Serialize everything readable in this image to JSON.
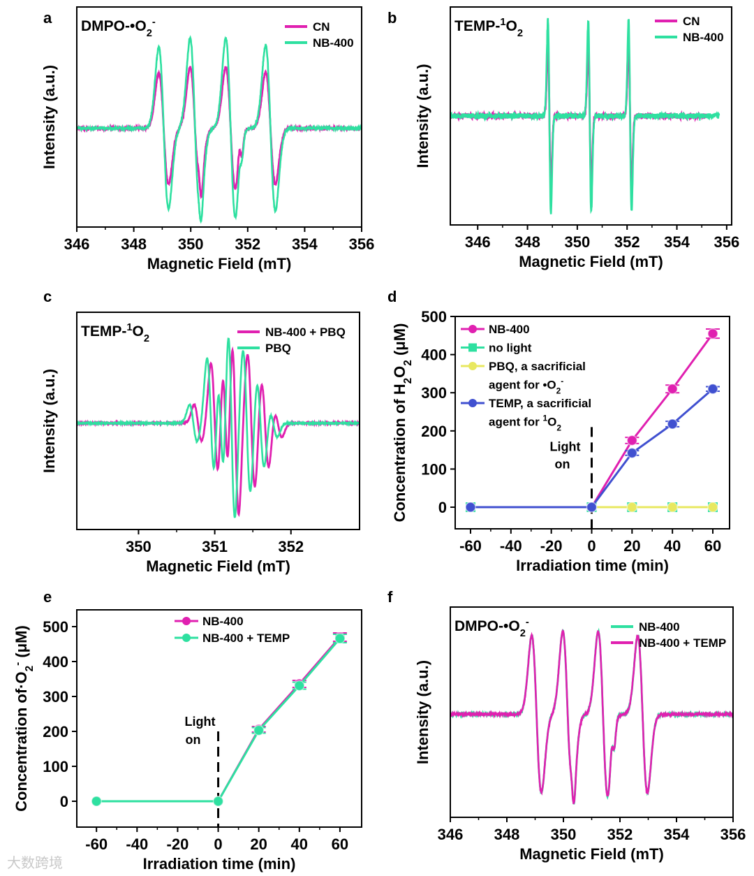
{
  "watermark": "大数跨境",
  "chart_data": [
    {
      "id": "a",
      "type": "line",
      "letter": "a",
      "title": [
        {
          "t": "DMPO-•O"
        },
        {
          "t": "2",
          "v": "sub"
        },
        {
          "t": "-",
          "v": "sup"
        }
      ],
      "xlabel": "Magnetic Field (mT)",
      "ylabel": "Intensity (a.u.)",
      "xlim": [
        346,
        356
      ],
      "ylim": [
        -1.1,
        1.35
      ],
      "xticks": [
        "346",
        "348",
        "350",
        "352",
        "354",
        "356"
      ],
      "legend": "top-right",
      "series": [
        {
          "name": "CN",
          "color": "#e020b0",
          "lines": [
            [
              349.05,
              0.17,
              0.62
            ],
            [
              350.15,
              0.17,
              0.68
            ],
            [
              350.33,
              0.06,
              0.15
            ],
            [
              351.4,
              0.17,
              0.68
            ],
            [
              351.75,
              0.06,
              0.15
            ],
            [
              352.8,
              0.17,
              0.62
            ]
          ],
          "noise": 0.015
        },
        {
          "name": "NB-400",
          "color": "#2ee0a0",
          "lines": [
            [
              349.05,
              0.17,
              0.9
            ],
            [
              350.15,
              0.17,
              1.0
            ],
            [
              350.33,
              0.06,
              0.12
            ],
            [
              351.4,
              0.17,
              1.0
            ],
            [
              351.75,
              0.06,
              0.12
            ],
            [
              352.8,
              0.17,
              0.92
            ]
          ],
          "noise": 0.015
        }
      ]
    },
    {
      "id": "b",
      "type": "line",
      "letter": "b",
      "title": [
        {
          "t": "TEMP-"
        },
        {
          "t": "1",
          "v": "sup"
        },
        {
          "t": "O"
        },
        {
          "t": "2",
          "v": "sub"
        }
      ],
      "xlabel": "Magnetic Field (mT)",
      "ylabel": "Intensity (a.u.)",
      "xlim": [
        344.9,
        356.2
      ],
      "ylim": [
        -1.25,
        1.25
      ],
      "xticks": [
        "346",
        "348",
        "350",
        "352",
        "354",
        "356"
      ],
      "legend": "top-right",
      "series": [
        {
          "name": "CN",
          "color": "#e020b0",
          "lines": [
            [
              348.88,
              0.06,
              0.8
            ],
            [
              350.5,
              0.06,
              0.8
            ],
            [
              352.12,
              0.06,
              0.8
            ]
          ],
          "noise": 0.03,
          "xmax": 355.2
        },
        {
          "name": "NB-400",
          "color": "#2ee0a0",
          "lines": [
            [
              348.88,
              0.06,
              1.1
            ],
            [
              350.5,
              0.06,
              1.1
            ],
            [
              352.12,
              0.06,
              1.1
            ]
          ],
          "noise": 0.03,
          "xmax": 355.7
        }
      ]
    },
    {
      "id": "c",
      "type": "line",
      "letter": "c",
      "title": [
        {
          "t": "TEMP-"
        },
        {
          "t": "1",
          "v": "sup"
        },
        {
          "t": "O"
        },
        {
          "t": "2",
          "v": "sub"
        }
      ],
      "xlabel": "Magnetic Field (mT)",
      "ylabel": "Intensity (a.u.)",
      "xlim": [
        349.19,
        352.9
      ],
      "ylim": [
        -1.15,
        1.2
      ],
      "xticks": [
        "350",
        "351",
        "352"
      ],
      "legend": "top-right",
      "series": [
        {
          "name": "NB-400 + PBQ",
          "color": "#e020b0",
          "lines": [
            [
              350.78,
              0.05,
              0.2
            ],
            [
              351.0,
              0.05,
              0.65
            ],
            [
              351.14,
              0.04,
              0.7
            ],
            [
              351.27,
              0.045,
              1.0
            ],
            [
              351.48,
              0.05,
              0.75
            ],
            [
              351.66,
              0.05,
              0.5
            ],
            [
              351.83,
              0.05,
              0.15
            ]
          ],
          "noise": 0.005
        },
        {
          "name": "PBQ",
          "color": "#2ee0a0",
          "lines": [
            [
              350.72,
              0.05,
              0.2
            ],
            [
              350.95,
              0.05,
              0.7
            ],
            [
              351.08,
              0.04,
              0.65
            ],
            [
              351.22,
              0.045,
              1.05
            ],
            [
              351.42,
              0.05,
              0.8
            ],
            [
              351.6,
              0.05,
              0.5
            ],
            [
              351.77,
              0.05,
              0.15
            ]
          ],
          "noise": 0.005
        }
      ]
    },
    {
      "id": "d",
      "type": "line",
      "letter": "d",
      "xlabel": "Irradiation time (min)",
      "ylabel": [
        {
          "t": "Concentration of H"
        },
        {
          "t": "2",
          "v": "sub"
        },
        {
          "t": "O"
        },
        {
          "t": "2",
          "v": "sub"
        },
        {
          "t": " (μM)"
        }
      ],
      "xlim": [
        -67.6,
        68.3
      ],
      "ylim": [
        -56.7,
        500
      ],
      "xticks": [
        -60,
        -40,
        -20,
        0,
        20,
        40,
        60
      ],
      "yticks": [
        0,
        100,
        200,
        300,
        400,
        500
      ],
      "annotation": [
        "Light",
        "on"
      ],
      "light_on_x": 0,
      "light_on_top": 210,
      "legend": "top-left",
      "x": [
        -60,
        0,
        20,
        40,
        60
      ],
      "series": [
        {
          "name": [
            {
              "t": "NB-400"
            }
          ],
          "color": "#e020b0",
          "marker": "circle",
          "values": [
            0,
            0,
            175,
            310,
            455
          ],
          "err": [
            0,
            0,
            8,
            10,
            12
          ],
          "from": 0
        },
        {
          "name": [
            {
              "t": "no light"
            }
          ],
          "color": "#2ee0a0",
          "marker": "square",
          "values": [
            0,
            0,
            0,
            0,
            0
          ],
          "err": [
            0,
            0,
            0,
            0,
            0
          ],
          "from": 0
        },
        {
          "name": [
            {
              "t": "PBQ, a sacrificial"
            }
          ],
          "name2": [
            {
              "t": "agent for  •O"
            },
            {
              "t": "2",
              "v": "sub"
            },
            {
              "t": "-",
              "v": "sup"
            }
          ],
          "color": "#e8e860",
          "marker": "circle",
          "values": [
            0,
            0,
            0,
            0,
            0
          ],
          "err": [
            0,
            0,
            0,
            0,
            0
          ],
          "from": 1
        },
        {
          "name": [
            {
              "t": "TEMP, a sacrificial"
            }
          ],
          "name2": [
            {
              "t": "agent for "
            },
            {
              "t": "1",
              "v": "sup"
            },
            {
              "t": "O"
            },
            {
              "t": "2",
              "v": "sub"
            }
          ],
          "color": "#4050d0",
          "marker": "circle",
          "values": [
            0,
            0,
            142,
            218,
            310
          ],
          "err": [
            0,
            0,
            6,
            7,
            6
          ],
          "from": 0
        }
      ]
    },
    {
      "id": "e",
      "type": "line",
      "letter": "e",
      "xlabel": "Irradiation time (min)",
      "ylabel": [
        {
          "t": "Concentration of·O"
        },
        {
          "t": "2",
          "v": "sub"
        },
        {
          "t": "-",
          "v": "sup"
        },
        {
          "t": " (μM)"
        }
      ],
      "xlim": [
        -69.7,
        70.7
      ],
      "ylim": [
        -74,
        548
      ],
      "xticks": [
        -60,
        -40,
        -20,
        0,
        20,
        40,
        60
      ],
      "yticks": [
        0,
        100,
        200,
        300,
        400,
        500
      ],
      "annotation": [
        "Light",
        "on"
      ],
      "light_on_x": 0,
      "light_on_top": 200,
      "legend": "top-center",
      "x": [
        -60,
        0,
        20,
        40,
        60
      ],
      "series": [
        {
          "name": [
            {
              "t": "NB-400"
            }
          ],
          "color": "#e020b0",
          "marker": "circle",
          "values": [
            0,
            0,
            206,
            336,
            470
          ],
          "err": [
            0,
            0,
            8,
            10,
            12
          ],
          "from": 0
        },
        {
          "name": [
            {
              "t": "NB-400 + TEMP"
            }
          ],
          "color": "#2ee0a0",
          "marker": "circle",
          "values": [
            0,
            0,
            203,
            331,
            466
          ],
          "err": [
            0,
            0,
            8,
            10,
            12
          ],
          "from": 0
        }
      ]
    },
    {
      "id": "f",
      "type": "line",
      "letter": "f",
      "title": [
        {
          "t": "DMPO-•O"
        },
        {
          "t": "2",
          "v": "sub"
        },
        {
          "t": "-",
          "v": "sup"
        }
      ],
      "xlabel": "Magnetic Field (mT)",
      "ylabel": "Intensity (a.u.)",
      "xlim": [
        346,
        356
      ],
      "ylim": [
        -1.25,
        1.3
      ],
      "xticks": [
        "346",
        "348",
        "350",
        "352",
        "354",
        "356"
      ],
      "legend": "top-right",
      "series": [
        {
          "name": "NB-400",
          "color": "#2ee0a0",
          "lines": [
            [
              349.05,
              0.17,
              0.95
            ],
            [
              350.15,
              0.17,
              1.0
            ],
            [
              350.33,
              0.06,
              0.18
            ],
            [
              351.4,
              0.17,
              1.0
            ],
            [
              351.75,
              0.06,
              0.18
            ],
            [
              352.8,
              0.17,
              0.95
            ]
          ],
          "noise": 0.012
        },
        {
          "name": "NB-400 + TEMP",
          "color": "#e020b0",
          "lines": [
            [
              349.05,
              0.17,
              0.95
            ],
            [
              350.15,
              0.17,
              1.0
            ],
            [
              350.33,
              0.06,
              0.18
            ],
            [
              351.4,
              0.17,
              1.0
            ],
            [
              351.75,
              0.06,
              0.18
            ],
            [
              352.8,
              0.17,
              0.95
            ]
          ],
          "noise": 0.012
        }
      ]
    }
  ]
}
